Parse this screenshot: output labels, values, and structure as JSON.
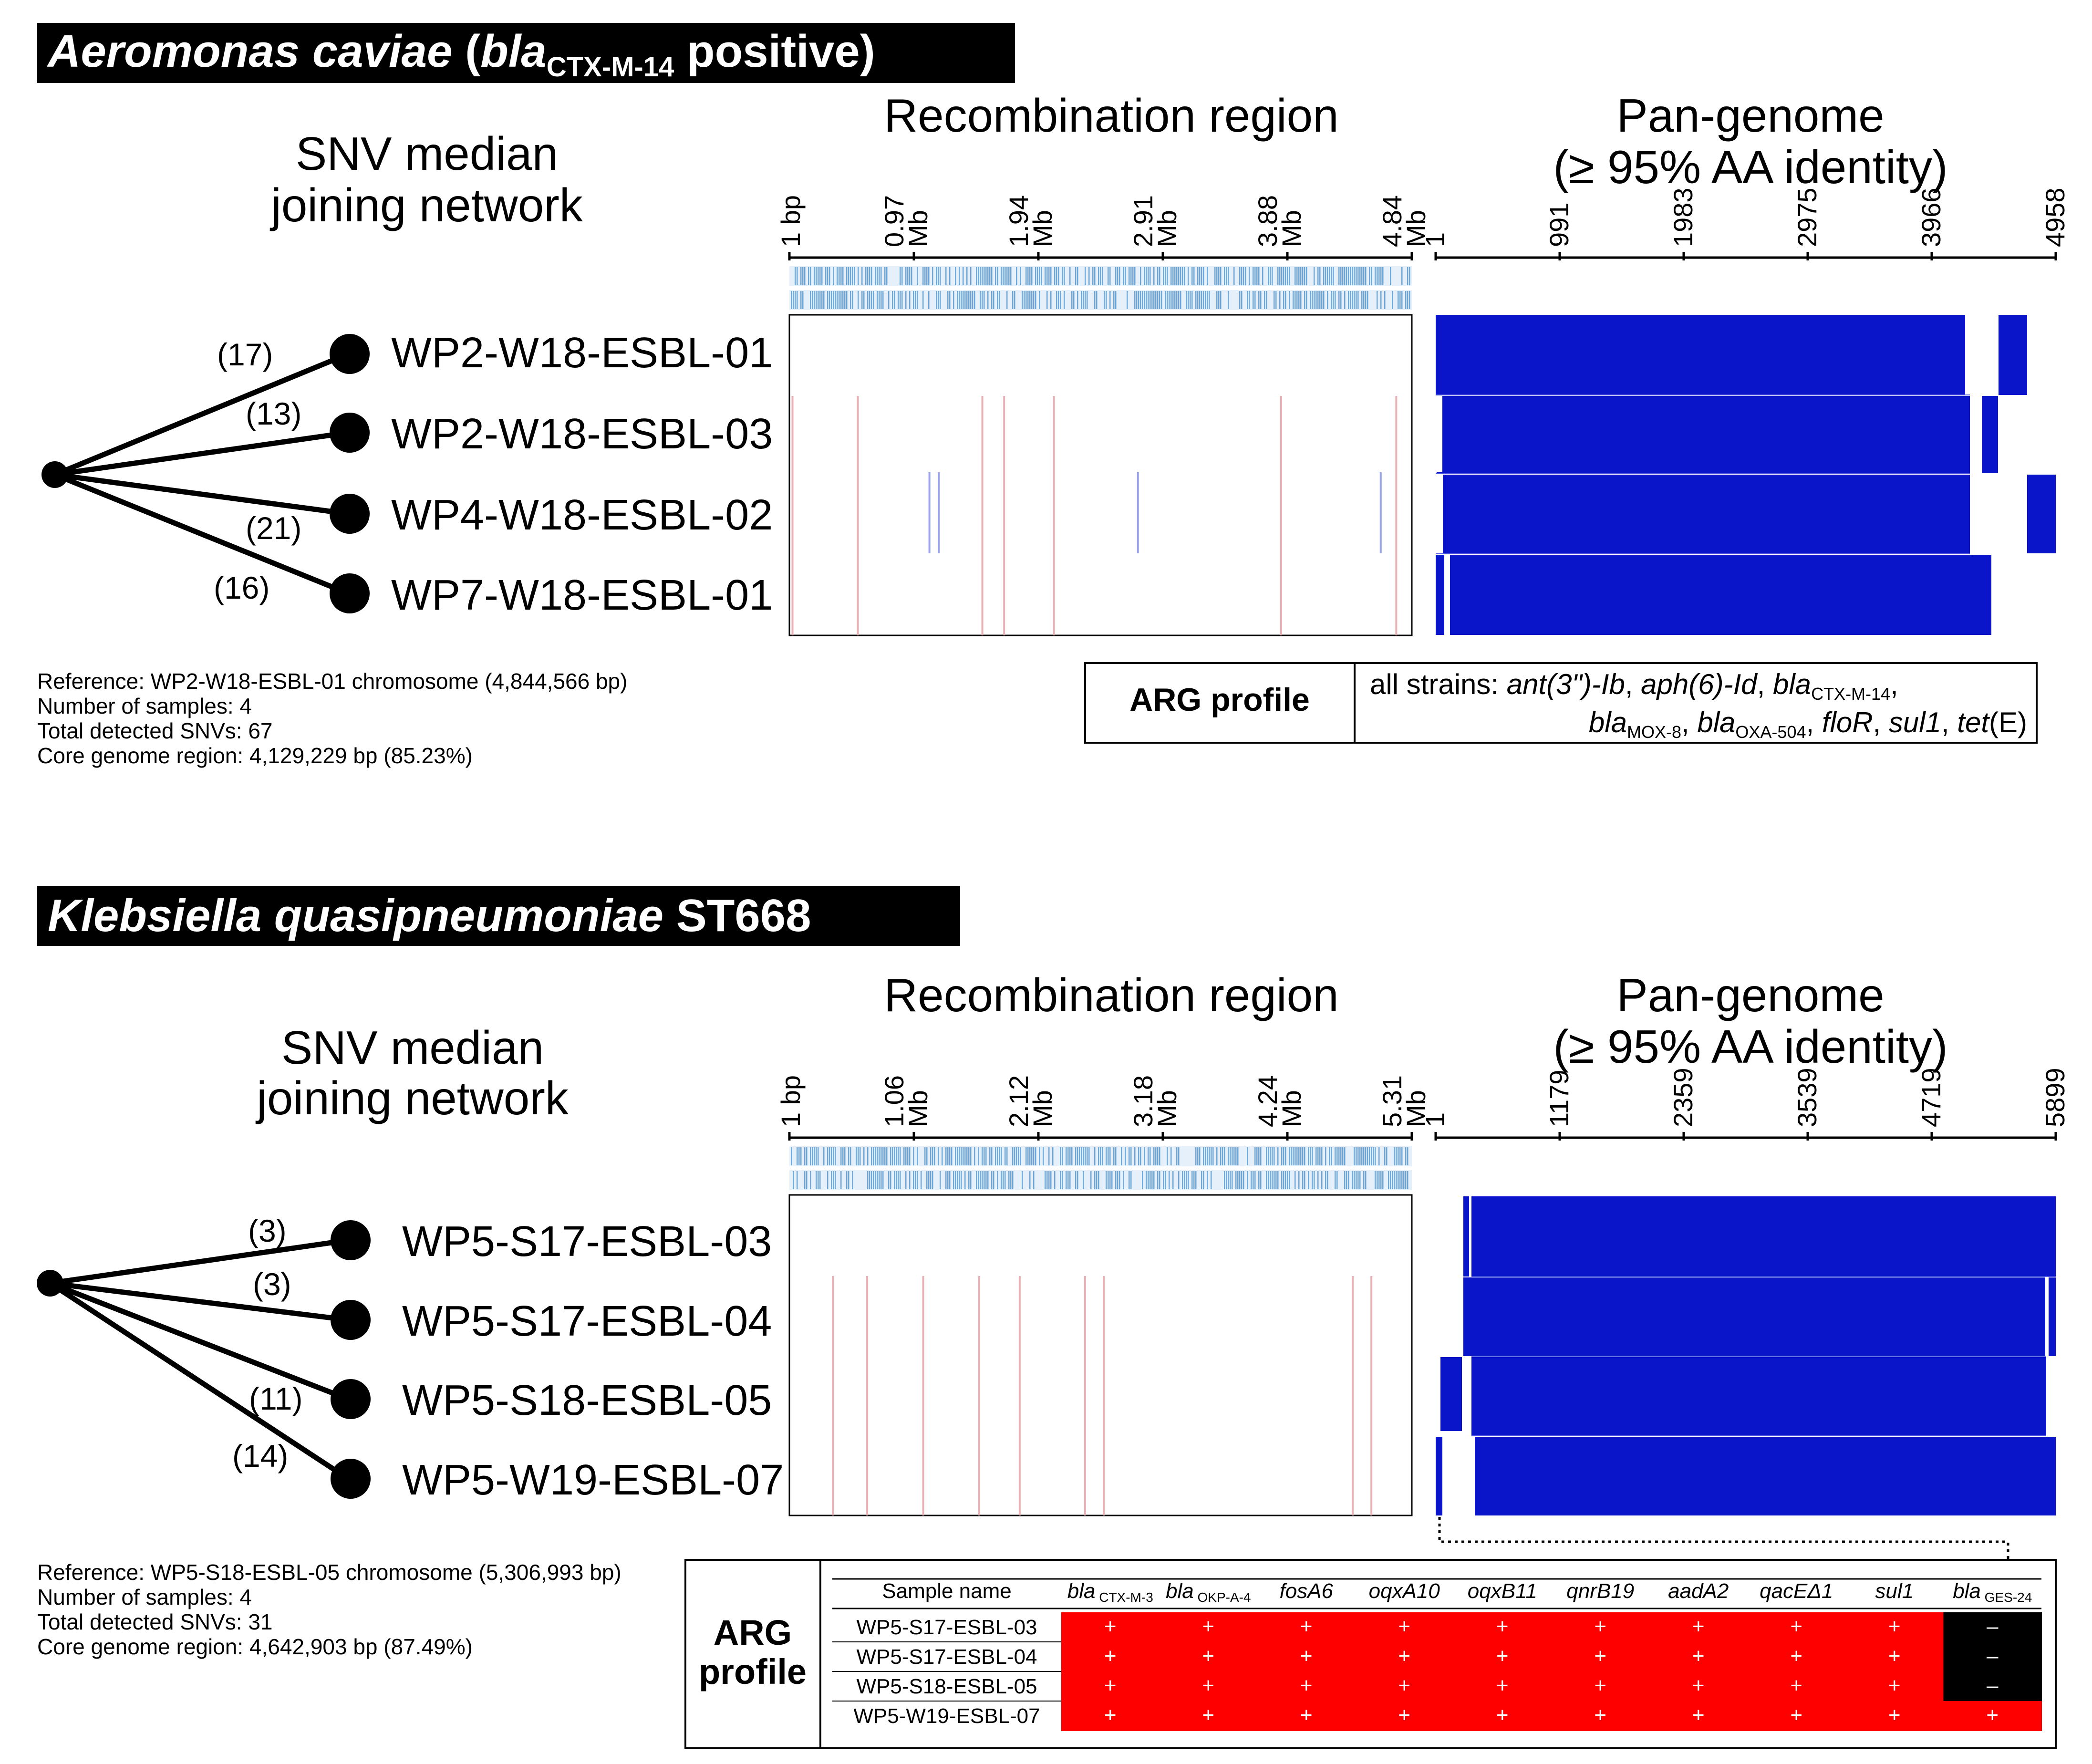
{
  "colors": {
    "bar": "#0a14c8",
    "arg_red": "#ff0000",
    "snp_red": "#e9b0b5",
    "snp_blue": "#9aa2e8",
    "tick_blue": "#6fa8d8"
  },
  "panels": [
    {
      "id": "aeromonas",
      "title_italic": "Aeromonas caviae",
      "title_open": " (",
      "title_gene": "bla",
      "title_sub": "CTX-M-14",
      "title_rest": " positive)",
      "network": {
        "title_line1": "SNV median",
        "title_line2": "joining network",
        "samples": [
          "WP2-W18-ESBL-01",
          "WP2-W18-ESBL-03",
          "WP4-W18-ESBL-02",
          "WP7-W18-ESBL-01"
        ],
        "edge_labels": [
          "(17)",
          "(13)",
          "(21)",
          "(16)"
        ]
      },
      "stats": [
        "Reference: WP2-W18-ESBL-01 chromosome (4,844,566 bp)",
        "Number of samples: 4",
        "Total detected SNVs: 67",
        "Core genome region: 4,129,229 bp (85.23%)"
      ],
      "recombination": {
        "title": "Recombination region",
        "ticks": [
          [
            "1 bp",
            ""
          ],
          [
            "0.97",
            "Mb"
          ],
          [
            "1.94",
            "Mb"
          ],
          [
            "2.91",
            "Mb"
          ],
          [
            "3.88",
            "Mb"
          ],
          [
            "4.84",
            "Mb"
          ]
        ],
        "red_lines": [
          0.005,
          0.11,
          0.31,
          0.345,
          0.425,
          0.79,
          0.975
        ],
        "blue_lines": [
          0.225,
          0.24,
          0.56,
          0.95
        ]
      },
      "pangenome": {
        "title_line1": "Pan-genome",
        "title_line2": "(≥ 95% AA identity)",
        "ticks": [
          "1",
          "991",
          "1983",
          "2975",
          "3966",
          "4958"
        ]
      },
      "arg": {
        "label": "ARG profile",
        "prefix": "all strains: ",
        "genes_line1": [
          [
            "ant(3\")-Ib",
            ""
          ],
          [
            "aph(6)-Id",
            ""
          ],
          [
            "bla",
            "CTX-M-14"
          ]
        ],
        "genes_line2": [
          [
            "bla",
            "MOX-8"
          ],
          [
            "bla",
            "OXA-504"
          ],
          [
            "floR",
            ""
          ],
          [
            "sul1",
            ""
          ],
          [
            "tet",
            ""
          ]
        ],
        "tet_suffix": "(E)"
      }
    },
    {
      "id": "klebsiella",
      "title_italic": "Klebsiella quasipneumoniae",
      "title_rest": " ST668",
      "network": {
        "title_line1": "SNV median",
        "title_line2": "joining network",
        "samples": [
          "WP5-S17-ESBL-03",
          "WP5-S17-ESBL-04",
          "WP5-S18-ESBL-05",
          "WP5-W19-ESBL-07"
        ],
        "edge_labels": [
          "(3)",
          "(3)",
          "(11)",
          "(14)"
        ]
      },
      "stats": [
        "Reference: WP5-S18-ESBL-05 chromosome (5,306,993 bp)",
        "Number of samples: 4",
        "Total detected SNVs: 31",
        "Core genome region: 4,642,903 bp (87.49%)"
      ],
      "recombination": {
        "title": "Recombination region",
        "ticks": [
          [
            "1 bp",
            ""
          ],
          [
            "1.06",
            "Mb"
          ],
          [
            "2.12",
            "Mb"
          ],
          [
            "3.18",
            "Mb"
          ],
          [
            "4.24",
            "Mb"
          ],
          [
            "5.31",
            "Mb"
          ]
        ],
        "red_lines": [
          0.07,
          0.125,
          0.215,
          0.305,
          0.37,
          0.475,
          0.505,
          0.935,
          0.905
        ],
        "blue_lines": []
      },
      "pangenome": {
        "title_line1": "Pan-genome",
        "title_line2": "(≥ 95% AA identity)",
        "ticks": [
          "1",
          "1179",
          "2359",
          "3539",
          "4719",
          "5899"
        ]
      },
      "arg": {
        "label_line1": "ARG",
        "label_line2": "profile",
        "sample_header": "Sample name",
        "genes": [
          [
            "bla",
            "CTX-M-3"
          ],
          [
            "bla",
            "OKP-A-4"
          ],
          [
            "fosA6",
            ""
          ],
          [
            "oqxA10",
            ""
          ],
          [
            "oqxB11",
            ""
          ],
          [
            "qnrB19",
            ""
          ],
          [
            "aadA2",
            ""
          ],
          [
            "qacEΔ1",
            ""
          ],
          [
            "sul1",
            ""
          ],
          [
            "bla",
            "GES-24"
          ]
        ],
        "rows": [
          {
            "sample": "WP5-S17-ESBL-03",
            "values": [
              "+",
              "+",
              "+",
              "+",
              "+",
              "+",
              "+",
              "+",
              "+",
              "–"
            ]
          },
          {
            "sample": "WP5-S17-ESBL-04",
            "values": [
              "+",
              "+",
              "+",
              "+",
              "+",
              "+",
              "+",
              "+",
              "+",
              "–"
            ]
          },
          {
            "sample": "WP5-S18-ESBL-05",
            "values": [
              "+",
              "+",
              "+",
              "+",
              "+",
              "+",
              "+",
              "+",
              "+",
              "–"
            ]
          },
          {
            "sample": "WP5-W19-ESBL-07",
            "values": [
              "+",
              "+",
              "+",
              "+",
              "+",
              "+",
              "+",
              "+",
              "+",
              "+"
            ]
          }
        ]
      }
    }
  ]
}
